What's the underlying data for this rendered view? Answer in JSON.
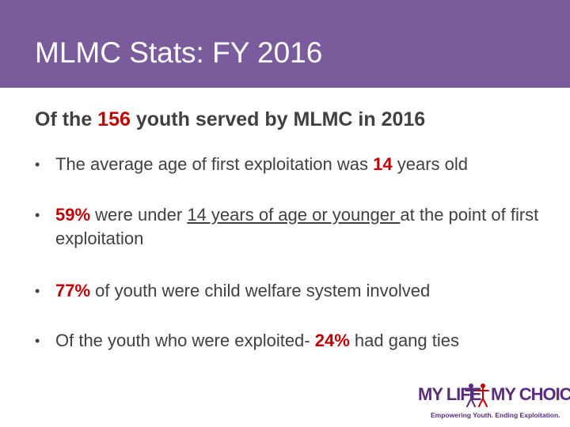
{
  "title": "MLMC Stats: FY 2016",
  "subtitle": {
    "prefix": "Of the ",
    "count": "156",
    "suffix": " youth served by MLMC in 2016"
  },
  "bullets": [
    {
      "pre": "The average age of first exploitation was ",
      "highlight": "14",
      "post": " years old"
    },
    {
      "highlight": "59%",
      "pre": " were under ",
      "underlined": "14 years of age or younger ",
      "post": "at the point of first exploitation"
    },
    {
      "highlight": "77%",
      "post": " of youth were child welfare system involved"
    },
    {
      "pre": "Of the youth who were exploited- ",
      "highlight": "24%",
      "post": " had gang ties"
    }
  ],
  "logo": {
    "left": "MY LIFE",
    "right": "MY CHOICE",
    "tagline": "Empowering Youth. Ending Exploitation."
  },
  "colors": {
    "header": "#7a5c9c",
    "highlight": "#c00000",
    "logo": "#5a2c7e"
  }
}
